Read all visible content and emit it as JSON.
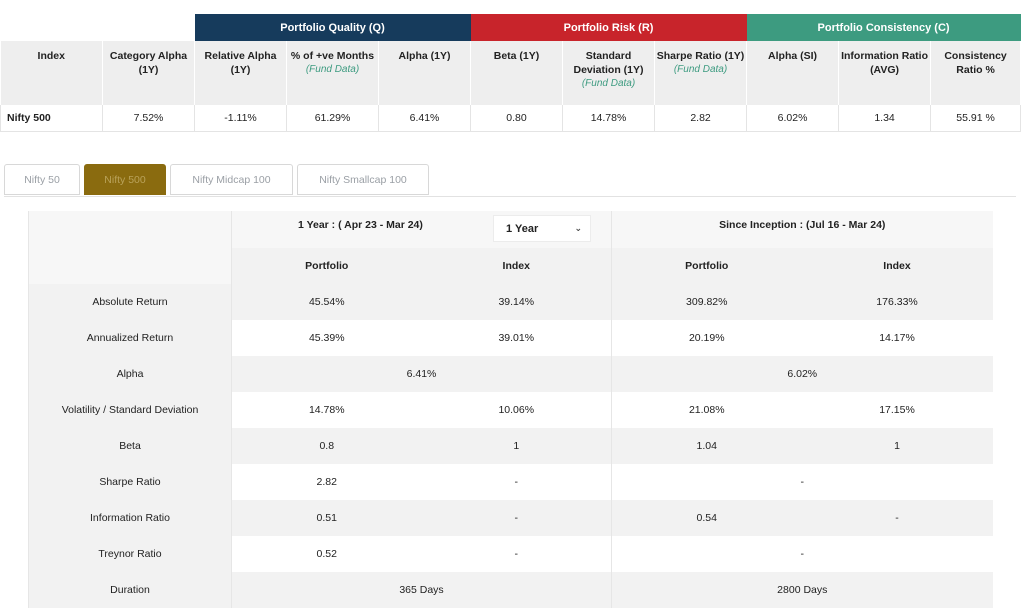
{
  "quality_table": {
    "groups": {
      "quality": "Portfolio Quality (Q)",
      "risk": "Portfolio Risk (R)",
      "consistency": "Portfolio Consistency (C)"
    },
    "colors": {
      "quality": "#163b5c",
      "risk": "#c8242b",
      "consistency": "#3d9b80"
    },
    "headers": {
      "index": "Index",
      "category_alpha": "Category Alpha (1Y)",
      "relative_alpha": "Relative Alpha (1Y)",
      "pos_months": "% of +ve Months",
      "pos_months_note": "(Fund Data)",
      "alpha_1y": "Alpha (1Y)",
      "beta_1y": "Beta (1Y)",
      "std_dev": "Standard Deviation (1Y)",
      "std_dev_note": "(Fund Data)",
      "sharpe": "Sharpe Ratio (1Y)",
      "sharpe_note": "(Fund Data)",
      "alpha_si": "Alpha (SI)",
      "info_ratio": "Information Ratio (AVG)",
      "consistency": "Consistency Ratio %"
    },
    "row": {
      "index": "Nifty 500",
      "category_alpha": "7.52%",
      "relative_alpha": "-1.11%",
      "pos_months": "61.29%",
      "alpha_1y": "6.41%",
      "beta_1y": "0.80",
      "std_dev": "14.78%",
      "sharpe": "2.82",
      "alpha_si": "6.02%",
      "info_ratio": "1.34",
      "consistency": "55.91 %"
    }
  },
  "tabs": {
    "items": [
      "Nifty 50",
      "Nifty 500",
      "Nifty Midcap 100",
      "Nifty Smallcap 100"
    ],
    "active_index": 1,
    "active_color": "#8a6b0f"
  },
  "returns_table": {
    "period_1y": "1 Year : ( Apr 23 - Mar 24)",
    "period_select": "1 Year",
    "period_si": "Since Inception : (Jul 16 - Mar 24)",
    "col_portfolio": "Portfolio",
    "col_index": "Index",
    "rows": [
      {
        "label": "Absolute Return",
        "p1": "45.54%",
        "i1": "39.14%",
        "p2": "309.82%",
        "i2": "176.33%"
      },
      {
        "label": "Annualized Return",
        "p1": "45.39%",
        "i1": "39.01%",
        "p2": "20.19%",
        "i2": "14.17%"
      },
      {
        "label": "Alpha",
        "m1": "6.41%",
        "m2": "6.02%"
      },
      {
        "label": "Volatility / Standard Deviation",
        "p1": "14.78%",
        "i1": "10.06%",
        "p2": "21.08%",
        "i2": "17.15%"
      },
      {
        "label": "Beta",
        "p1": "0.8",
        "i1": "1",
        "p2": "1.04",
        "i2": "1"
      },
      {
        "label": "Sharpe Ratio",
        "p1": "2.82",
        "i1": "-",
        "m2": "-"
      },
      {
        "label": "Information Ratio",
        "p1": "0.51",
        "i1": "-",
        "p2": "0.54",
        "i2": "-"
      },
      {
        "label": "Treynor Ratio",
        "p1": "0.52",
        "i1": "-",
        "m2": "-"
      },
      {
        "label": "Duration",
        "m1": "365 Days",
        "m2": "2800 Days"
      }
    ]
  }
}
